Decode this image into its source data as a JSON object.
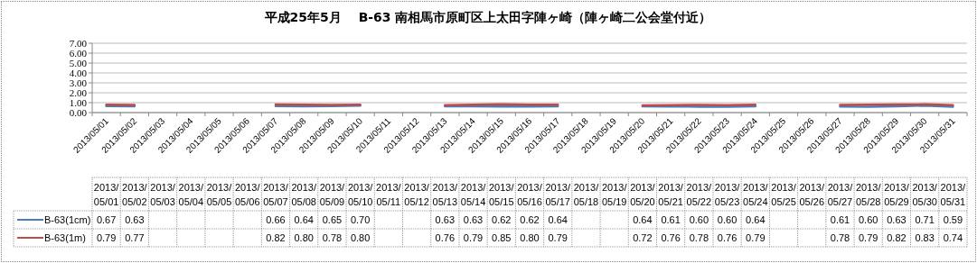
{
  "chart_data": {
    "type": "line",
    "title": "平成25年5月　 B-63 南相馬市原町区上太田字陣ヶ崎（陣ヶ崎二公会堂付近）",
    "categories": [
      "2013/05/01",
      "2013/05/02",
      "2013/05/03",
      "2013/05/04",
      "2013/05/05",
      "2013/05/06",
      "2013/05/07",
      "2013/05/08",
      "2013/05/09",
      "2013/05/10",
      "2013/05/11",
      "2013/05/12",
      "2013/05/13",
      "2013/05/14",
      "2013/05/15",
      "2013/05/16",
      "2013/05/17",
      "2013/05/18",
      "2013/05/19",
      "2013/05/20",
      "2013/05/21",
      "2013/05/22",
      "2013/05/23",
      "2013/05/24",
      "2013/05/25",
      "2013/05/26",
      "2013/05/27",
      "2013/05/28",
      "2013/05/29",
      "2013/05/30",
      "2013/05/31"
    ],
    "series": [
      {
        "name": "B-63(1cm)",
        "color": "#4a7ebb",
        "values": [
          0.67,
          0.63,
          null,
          null,
          null,
          null,
          0.66,
          0.64,
          0.65,
          0.7,
          null,
          null,
          0.63,
          0.63,
          0.62,
          0.62,
          0.64,
          null,
          null,
          0.64,
          0.61,
          0.6,
          0.6,
          0.64,
          null,
          null,
          0.61,
          0.6,
          0.63,
          0.71,
          0.59
        ],
        "value_labels": [
          "0.67",
          "0.63",
          null,
          null,
          null,
          null,
          "0.66",
          "0.64",
          "0.65",
          "0.70",
          null,
          null,
          "0.63",
          "0.63",
          "0.62",
          "0.62",
          "0.64",
          null,
          null,
          "0.64",
          "0.61",
          "0.60",
          "0.60",
          "0.64",
          null,
          null,
          "0.61",
          "0.60",
          "0.63",
          "0.71",
          "0.59"
        ]
      },
      {
        "name": "B-63(1m)",
        "color": "#be4b48",
        "values": [
          0.79,
          0.77,
          null,
          null,
          null,
          null,
          0.82,
          0.8,
          0.78,
          0.8,
          null,
          null,
          0.76,
          0.79,
          0.85,
          0.8,
          0.79,
          null,
          null,
          0.72,
          0.76,
          0.78,
          0.76,
          0.79,
          null,
          null,
          0.78,
          0.79,
          0.82,
          0.83,
          0.74
        ],
        "value_labels": [
          "0.79",
          "0.77",
          null,
          null,
          null,
          null,
          "0.82",
          "0.80",
          "0.78",
          "0.80",
          null,
          null,
          "0.76",
          "0.79",
          "0.85",
          "0.80",
          "0.79",
          null,
          null,
          "0.72",
          "0.76",
          "0.78",
          "0.76",
          "0.79",
          null,
          null,
          "0.78",
          "0.79",
          "0.82",
          "0.83",
          "0.74"
        ]
      }
    ],
    "ylim": [
      0,
      7
    ],
    "yticks": [
      {
        "value": 0,
        "label": "0.00"
      },
      {
        "value": 1,
        "label": "1.00"
      },
      {
        "value": 2,
        "label": "2.00"
      },
      {
        "value": 3,
        "label": "3.00"
      },
      {
        "value": 4,
        "label": "4.00"
      },
      {
        "value": 5,
        "label": "5.00"
      },
      {
        "value": 6,
        "label": "6.00"
      },
      {
        "value": 7,
        "label": "7.00"
      }
    ],
    "grid": "y",
    "legend": "bottom left",
    "marker": "none",
    "line_style": "solid"
  }
}
